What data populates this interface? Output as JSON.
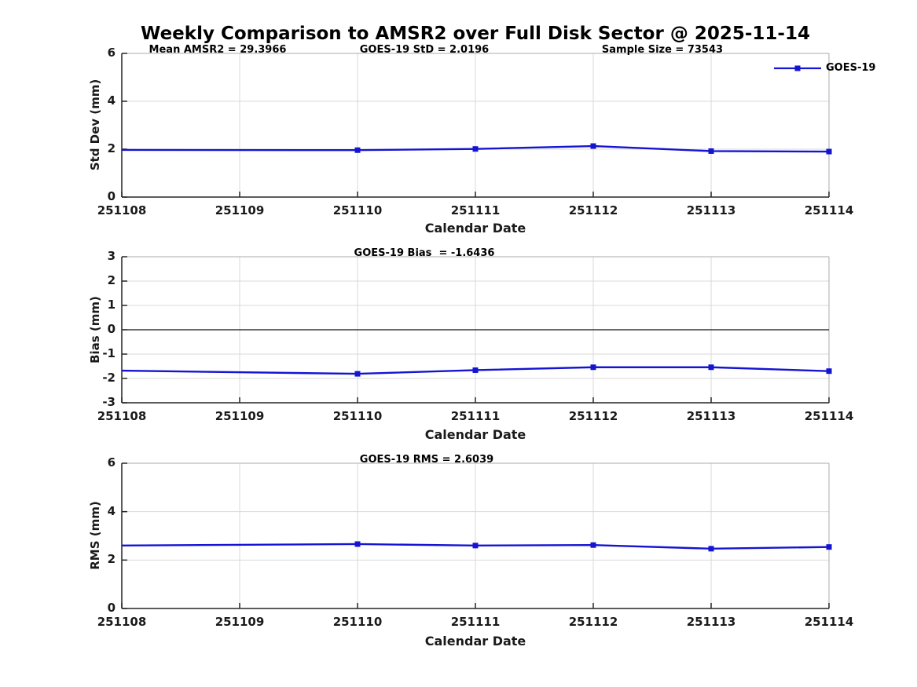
{
  "figure_title": "Weekly Comparison to AMSR2 over Full Disk Sector @ 2025-11-14",
  "xlabel": "Calendar Date",
  "x_categories": [
    "251108",
    "251109",
    "251110",
    "251111",
    "251112",
    "251113",
    "251114"
  ],
  "legend": {
    "label": "GOES-19"
  },
  "colors": {
    "line": "#1414d2",
    "grid": "#d9d9d9",
    "axis_dark": "#262626",
    "axis_light": "#ababab",
    "zero_line": "#3a3a3a",
    "tick_text": "#1a1a1a"
  },
  "chart_data": [
    {
      "type": "line",
      "name": "std-dev",
      "ylabel": "Std Dev (mm)",
      "ylim": [
        0,
        6
      ],
      "yticks": [
        0,
        2,
        4,
        6
      ],
      "grid": true,
      "annotations": [
        "Mean AMSR2 = 29.3966",
        "GOES-19 StD = 2.0196",
        "Sample Size = 73543"
      ],
      "legend_position": "top-right",
      "series": [
        {
          "name": "GOES-19",
          "x": [
            "251108",
            "251110",
            "251111",
            "251112",
            "251113",
            "251114"
          ],
          "y": [
            1.97,
            1.96,
            2.01,
            2.13,
            1.92,
            1.9
          ],
          "markers": [
            false,
            true,
            true,
            true,
            true,
            true
          ]
        }
      ]
    },
    {
      "type": "line",
      "name": "bias",
      "title": "GOES-19 Bias  = -1.6436",
      "ylabel": "Bias (mm)",
      "ylim": [
        -3,
        3
      ],
      "yticks": [
        -3,
        -2,
        -1,
        0,
        1,
        2,
        3
      ],
      "grid": true,
      "zero_line": true,
      "series": [
        {
          "name": "GOES-19",
          "x": [
            "251108",
            "251110",
            "251111",
            "251112",
            "251113",
            "251114"
          ],
          "y": [
            -1.68,
            -1.81,
            -1.66,
            -1.54,
            -1.54,
            -1.7
          ],
          "markers": [
            false,
            true,
            true,
            true,
            true,
            true
          ]
        }
      ]
    },
    {
      "type": "line",
      "name": "rms",
      "title": "GOES-19 RMS = 2.6039",
      "ylabel": "RMS (mm)",
      "ylim": [
        0,
        6
      ],
      "yticks": [
        0,
        2,
        4,
        6
      ],
      "grid": true,
      "series": [
        {
          "name": "GOES-19",
          "x": [
            "251108",
            "251110",
            "251111",
            "251112",
            "251113",
            "251114"
          ],
          "y": [
            2.6,
            2.66,
            2.6,
            2.62,
            2.47,
            2.54
          ],
          "markers": [
            false,
            true,
            true,
            true,
            true,
            true
          ]
        }
      ]
    }
  ]
}
